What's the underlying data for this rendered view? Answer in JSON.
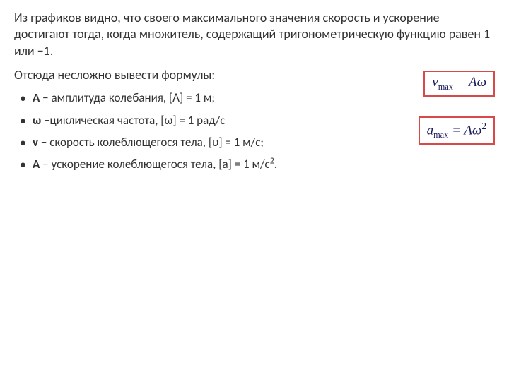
{
  "intro": "Из графиков видно, что своего максимального значения скорость и ускорение достигают тогда, когда множитель, содержащий тригонометрическую функцию равен 1 или −1.",
  "subhead": "Отсюда несложно вывести формулы:",
  "bullets": {
    "b1_var": "A",
    "b1_rest": " − амплитуда колебания, [A] = 1 м;",
    "b2_var": "ω",
    "b2_rest": " −циклическая частота, [ω] = 1 рад/с",
    "b3_var": "v",
    "b3_rest": " − скорость колеблющегося тела, [υ] = 1 м/с;",
    "b4_var": "A",
    "b4_rest_pre": " − ускорение колеблющегося тела, [a] = 1 м/с",
    "b4_sup": "2",
    "b4_rest_post": "."
  },
  "formulas": {
    "f1_v": "v",
    "f1_sub": "max",
    "f1_eq": " = Aω",
    "f2_a": "a",
    "f2_sub": "max",
    "f2_eq_pre": " = Aω",
    "f2_sup": "2"
  },
  "colors": {
    "text": "#333333",
    "formula_border": "#d84a4a",
    "formula_text": "#1a1a5e",
    "background": "#ffffff"
  }
}
